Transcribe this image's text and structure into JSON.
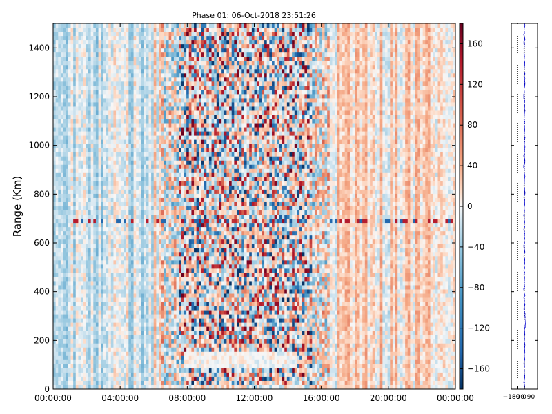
{
  "chart_data": [
    {
      "type": "heatmap",
      "title": "Phase 01: 06-Oct-2018 23:51:26",
      "xlabel": "",
      "ylabel": "Range (Km)",
      "xticks": [
        "00:00:00",
        "04:00:00",
        "08:00:00",
        "12:00:00",
        "16:00:00",
        "20:00:00",
        "00:00:00"
      ],
      "xlim_hours": [
        0,
        24
      ],
      "yticks": [
        0,
        200,
        400,
        600,
        800,
        1000,
        1200,
        1400
      ],
      "ylim": [
        0,
        1500
      ],
      "colormap": "RdBu_r",
      "colorbar": {
        "ticks": [
          160,
          120,
          80,
          40,
          0,
          -40,
          -80,
          -120,
          -160
        ],
        "range": [
          -180,
          180
        ]
      },
      "value_description": {
        "quiet_intervals_hours": [
          [
            0,
            6.5
          ],
          [
            16.5,
            24
          ]
        ],
        "noisy_interval_hours": [
          7.5,
          15.5
        ],
        "horizontal_stripe_range_km": 690,
        "low_band_range_km": [
          0,
          120
        ]
      }
    },
    {
      "type": "line",
      "title": "",
      "xticks": [
        "-180",
        "-90",
        "0",
        "90"
      ],
      "xlim": [
        -180,
        180
      ],
      "ylim": [
        0,
        1500
      ],
      "grid": "x-dotted",
      "series": [
        {
          "color": "#0000cc",
          "mean_value": 0,
          "spread": 10
        }
      ]
    }
  ],
  "colors": {
    "positive": "#b2182b",
    "negative": "#2166ac",
    "profile_line": "#0000cc"
  }
}
